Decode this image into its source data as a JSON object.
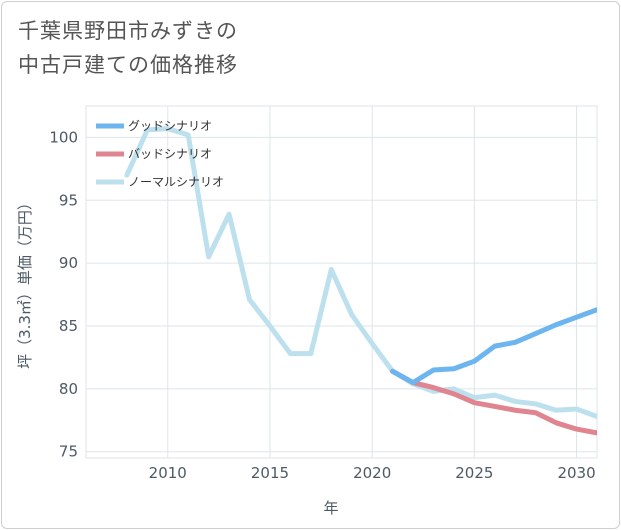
{
  "title": {
    "line1": "千葉県野田市みずきの",
    "line2": "中古戸建ての価格推移"
  },
  "colors": {
    "good": "#6cb5ee",
    "bad": "#e0848f",
    "normal": "#bde0ee",
    "grid": "#dde5ea",
    "axis_text": "#4d5965"
  },
  "chart_data": {
    "type": "line",
    "title": "千葉県野田市みずきの中古戸建ての価格推移",
    "xlabel": "年",
    "ylabel": "坪（3.3㎡）単価（万円）",
    "xlim": [
      2006,
      2031
    ],
    "ylim": [
      74.5,
      102.5
    ],
    "x_ticks": [
      2010,
      2015,
      2020,
      2025,
      2030
    ],
    "y_ticks": [
      75,
      80,
      85,
      90,
      95,
      100
    ],
    "legend_position": "top-left",
    "series": [
      {
        "name": "グッドシナリオ",
        "key": "good",
        "x": [
          2021,
          2022,
          2023,
          2024,
          2025,
          2026,
          2027,
          2028,
          2029,
          2030,
          2031
        ],
        "values": [
          81.4,
          80.5,
          81.5,
          81.6,
          82.2,
          83.4,
          83.7,
          84.4,
          85.1,
          85.7,
          86.3
        ]
      },
      {
        "name": "バッドシナリオ",
        "key": "bad",
        "x": [
          2021,
          2022,
          2023,
          2024,
          2025,
          2026,
          2027,
          2028,
          2029,
          2030,
          2031
        ],
        "values": [
          81.4,
          80.5,
          80.1,
          79.6,
          78.9,
          78.6,
          78.3,
          78.1,
          77.3,
          76.8,
          76.5
        ]
      },
      {
        "name": "ノーマルシナリオ",
        "key": "normal",
        "x": [
          2008,
          2009,
          2010,
          2011,
          2012,
          2013,
          2014,
          2015,
          2016,
          2017,
          2018,
          2019,
          2020,
          2021,
          2022,
          2023,
          2024,
          2025,
          2026,
          2027,
          2028,
          2029,
          2030,
          2031
        ],
        "values": [
          97.0,
          100.6,
          100.7,
          100.2,
          90.5,
          93.9,
          87.1,
          85.0,
          82.8,
          82.8,
          89.5,
          85.9,
          83.6,
          81.4,
          80.4,
          79.8,
          80.0,
          79.3,
          79.5,
          79.0,
          78.8,
          78.3,
          78.4,
          77.8
        ]
      }
    ]
  }
}
